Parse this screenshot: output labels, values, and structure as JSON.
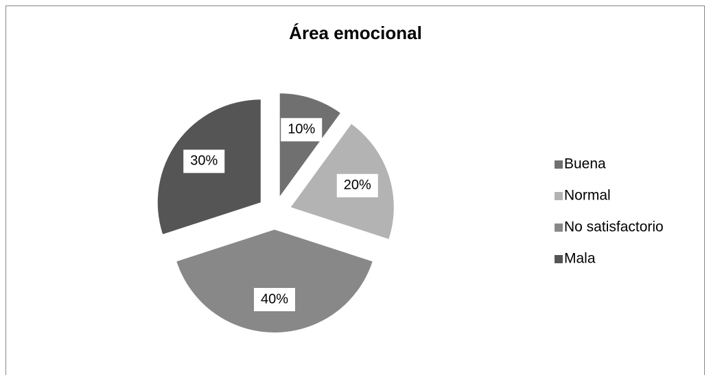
{
  "chart_data": {
    "type": "pie",
    "title": "Área emocional",
    "categories": [
      "Buena",
      "Normal",
      "No satisfactorio",
      "Mala"
    ],
    "values": [
      10,
      20,
      40,
      30
    ],
    "value_labels": [
      "10%",
      "20%",
      "40%",
      "30%"
    ],
    "colors": [
      "#707070",
      "#b3b3b3",
      "#888888",
      "#555555"
    ],
    "legend": "right"
  }
}
